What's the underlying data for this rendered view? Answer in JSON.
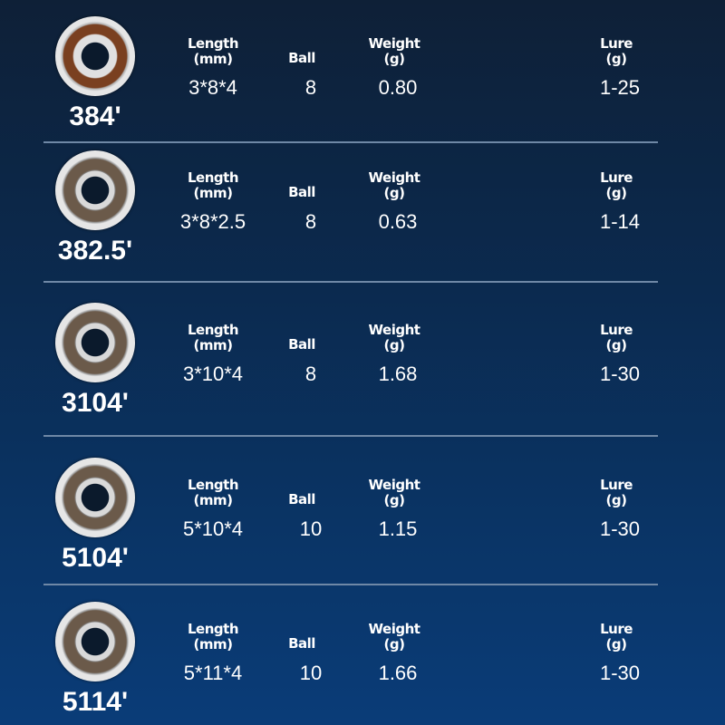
{
  "headers": {
    "length": "Length",
    "length_unit": "(mm)",
    "ball": "Ball",
    "weight": "Weight",
    "weight_unit": "(g)",
    "lure": "Lure",
    "lure_unit": "(g)"
  },
  "rows": [
    {
      "model": "384'",
      "length": "3*8*4",
      "ball": "8",
      "weight": "0.80",
      "lure": "1-25",
      "style": "rust"
    },
    {
      "model": "382.5'",
      "length": "3*8*2.5",
      "ball": "8",
      "weight": "0.63",
      "lure": "1-14",
      "style": "plain"
    },
    {
      "model": "3104'",
      "length": "3*10*4",
      "ball": "8",
      "weight": "1.68",
      "lure": "1-30",
      "style": "plain"
    },
    {
      "model": "5104'",
      "length": "5*10*4",
      "ball": "10",
      "weight": "1.15",
      "lure": "1-30",
      "style": "plain"
    },
    {
      "model": "5114'",
      "length": "5*11*4",
      "ball": "10",
      "weight": "1.66",
      "lure": "1-30",
      "style": "plain"
    }
  ]
}
